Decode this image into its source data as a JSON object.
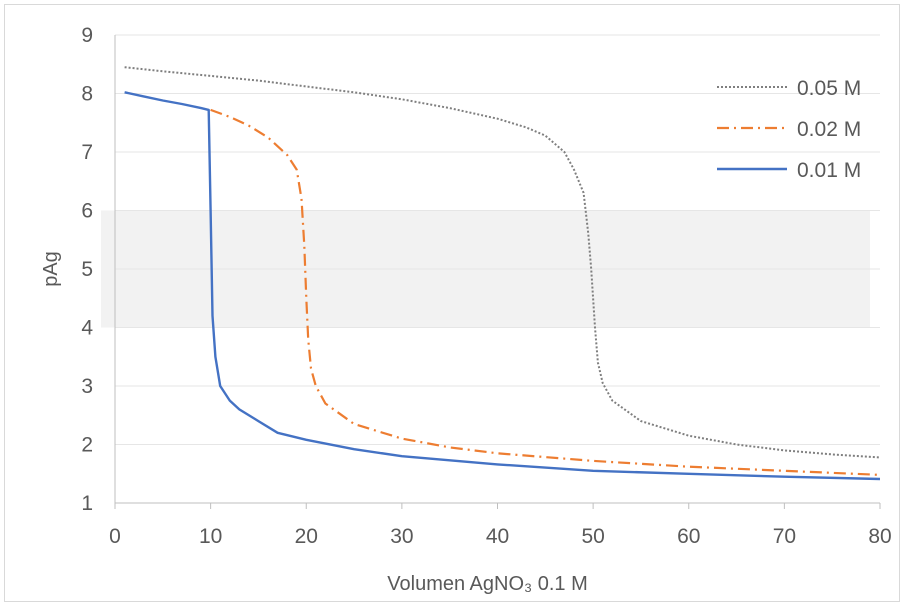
{
  "chart_data": {
    "type": "line",
    "xlabel": "Volumen AgNO₃ 0.1 M",
    "ylabel": "pAg",
    "xlim": [
      0,
      80
    ],
    "ylim": [
      1,
      9
    ],
    "xticks": [
      "0",
      "10",
      "20",
      "30",
      "40",
      "50",
      "60",
      "70",
      "80"
    ],
    "yticks": [
      "1",
      "2",
      "3",
      "4",
      "5",
      "6",
      "7",
      "8",
      "9"
    ],
    "grid": "horizontal",
    "legend_position": "top-right",
    "shaded_band": {
      "y_from": 4,
      "y_to": 6,
      "color": "#f2f2f2"
    },
    "series": [
      {
        "name": "0.05 M",
        "color": "#7f7f7f",
        "dash": "dotted",
        "x": [
          1,
          5,
          10,
          15,
          20,
          25,
          30,
          35,
          40,
          43,
          45,
          47,
          48,
          49,
          49.5,
          49.8,
          50,
          50.2,
          50.5,
          51,
          52,
          55,
          60,
          65,
          70,
          75,
          80
        ],
        "y": [
          8.45,
          8.38,
          8.3,
          8.22,
          8.12,
          8.02,
          7.9,
          7.75,
          7.57,
          7.42,
          7.28,
          7.0,
          6.7,
          6.3,
          5.6,
          5.0,
          4.5,
          4.0,
          3.4,
          3.05,
          2.75,
          2.4,
          2.15,
          2.0,
          1.9,
          1.83,
          1.78
        ]
      },
      {
        "name": "0.02 M",
        "color": "#ed7d31",
        "dash": "dashdot",
        "x": [
          10,
          12,
          14,
          16,
          18,
          19,
          19.5,
          19.8,
          20,
          20.2,
          20.5,
          21,
          22,
          25,
          30,
          35,
          40,
          50,
          60,
          70,
          80
        ],
        "y": [
          7.72,
          7.6,
          7.45,
          7.25,
          6.95,
          6.7,
          6.2,
          5.4,
          4.5,
          3.8,
          3.3,
          3.0,
          2.7,
          2.35,
          2.1,
          1.95,
          1.85,
          1.72,
          1.62,
          1.55,
          1.48
        ]
      },
      {
        "name": "0.01 M",
        "color": "#4472c4",
        "dash": "solid",
        "x": [
          1,
          3,
          5,
          7,
          9,
          9.8,
          10,
          10.2,
          10.5,
          11,
          12,
          13,
          15,
          17,
          20,
          25,
          30,
          40,
          50,
          60,
          70,
          80
        ],
        "y": [
          8.02,
          7.95,
          7.88,
          7.82,
          7.75,
          7.72,
          6.0,
          4.2,
          3.5,
          3.0,
          2.75,
          2.6,
          2.4,
          2.2,
          2.08,
          1.92,
          1.8,
          1.66,
          1.55,
          1.5,
          1.45,
          1.41
        ]
      }
    ]
  }
}
